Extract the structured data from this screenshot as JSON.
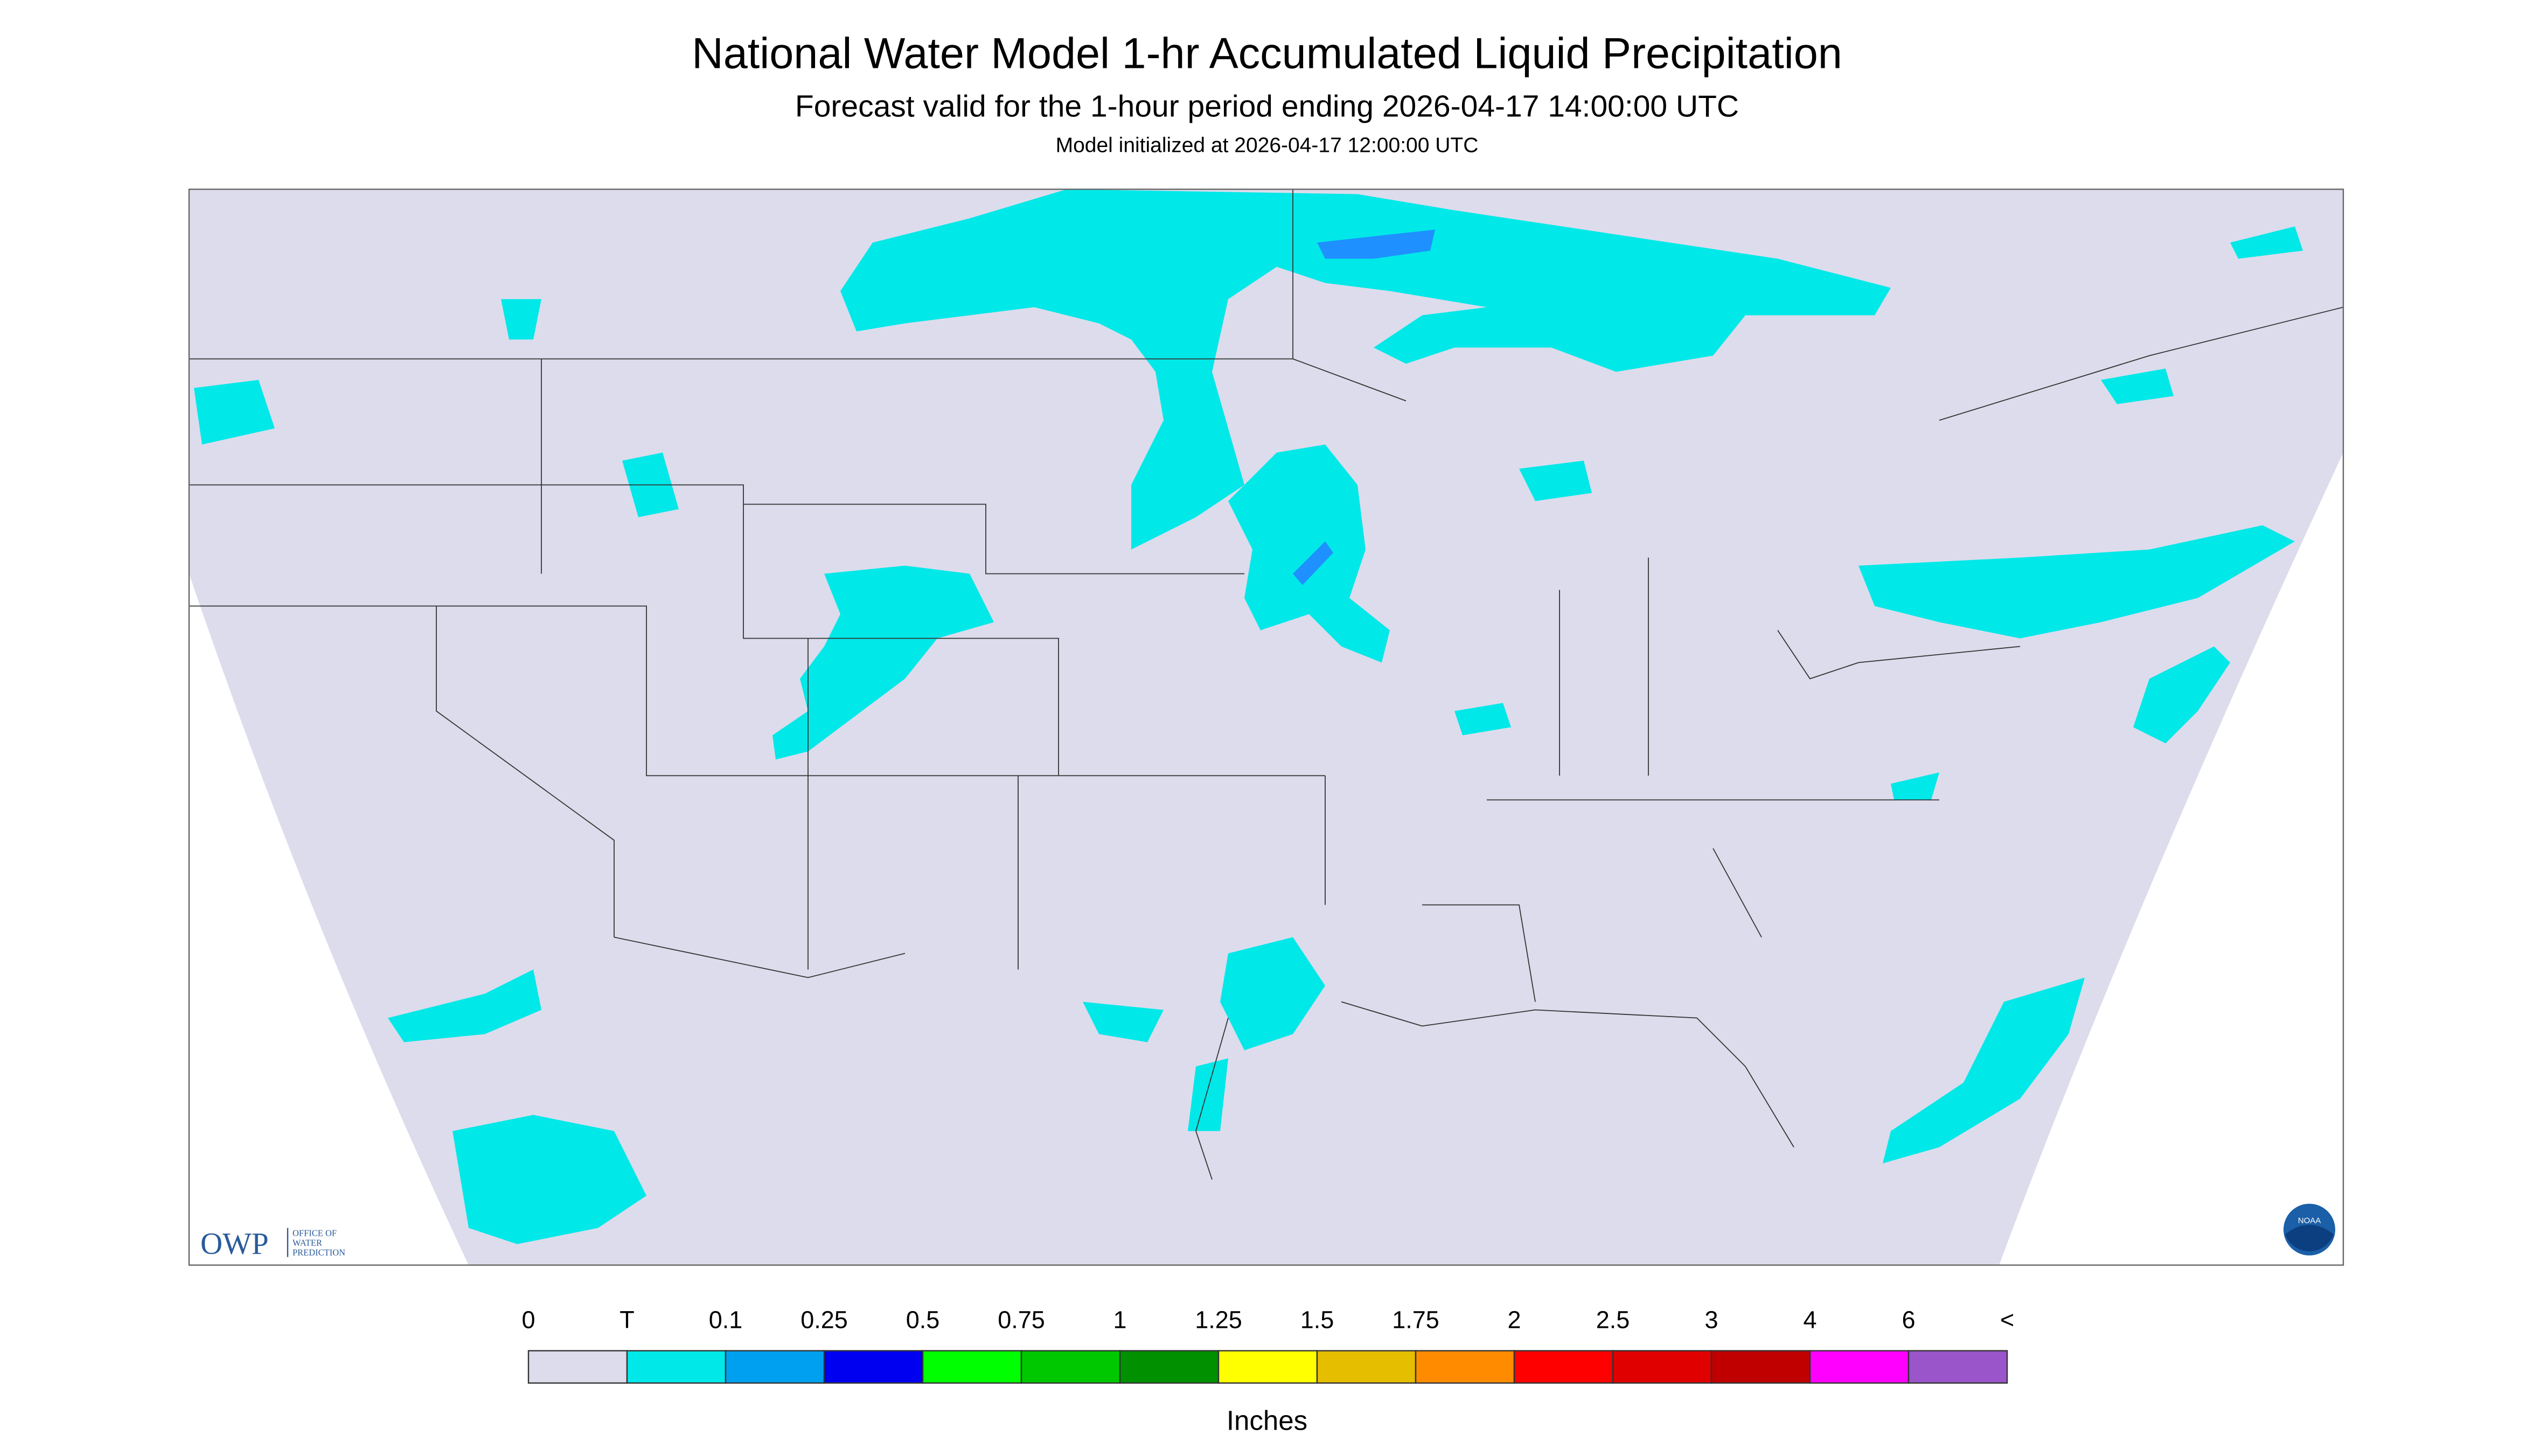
{
  "header": {
    "title": "National Water Model 1-hr Accumulated Liquid Precipitation",
    "subtitle": "Forecast valid for the 1-hour period ending 2026-04-17 14:00:00 UTC",
    "initialized": "Model initialized at 2026-04-17 12:00:00 UTC"
  },
  "legend": {
    "labels": [
      "0",
      "T",
      "0.1",
      "0.25",
      "0.5",
      "0.75",
      "1",
      "1.25",
      "1.5",
      "1.75",
      "2",
      "2.5",
      "3",
      "4",
      "6",
      "<"
    ],
    "colors": [
      "#dcdcec",
      "#00e8e8",
      "#00a0f0",
      "#0000f0",
      "#00ff00",
      "#00c800",
      "#009000",
      "#ffff00",
      "#e6be00",
      "#ff8c00",
      "#ff0000",
      "#e00000",
      "#c00000",
      "#ff00ff",
      "#9955c9"
    ],
    "units": "Inches"
  },
  "logos": {
    "owp": "OWP",
    "owp_lines": [
      "OFFICE OF",
      "WATER",
      "PREDICTION"
    ],
    "noaa": "NOAA"
  }
}
